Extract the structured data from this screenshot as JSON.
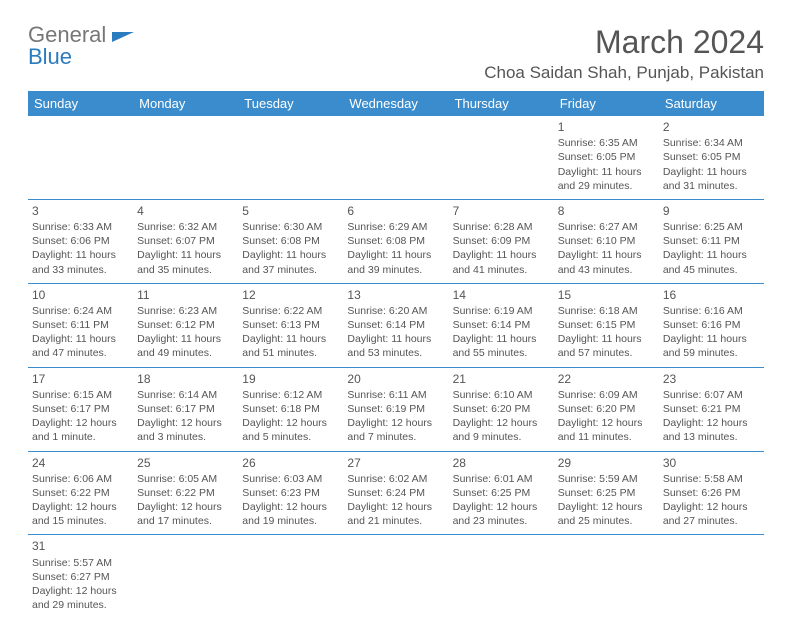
{
  "logo": {
    "part1": "General",
    "part2": "Blue"
  },
  "title": "March 2024",
  "location": "Choa Saidan Shah, Punjab, Pakistan",
  "colors": {
    "header_bg": "#3b8ccc",
    "border": "#3b8ccc",
    "text": "#555555",
    "logo_gray": "#777777",
    "logo_blue": "#2b7bbf"
  },
  "weekdays": [
    "Sunday",
    "Monday",
    "Tuesday",
    "Wednesday",
    "Thursday",
    "Friday",
    "Saturday"
  ],
  "weeks": [
    [
      null,
      null,
      null,
      null,
      null,
      {
        "n": "1",
        "sunrise": "Sunrise: 6:35 AM",
        "sunset": "Sunset: 6:05 PM",
        "daylight": "Daylight: 11 hours and 29 minutes."
      },
      {
        "n": "2",
        "sunrise": "Sunrise: 6:34 AM",
        "sunset": "Sunset: 6:05 PM",
        "daylight": "Daylight: 11 hours and 31 minutes."
      }
    ],
    [
      {
        "n": "3",
        "sunrise": "Sunrise: 6:33 AM",
        "sunset": "Sunset: 6:06 PM",
        "daylight": "Daylight: 11 hours and 33 minutes."
      },
      {
        "n": "4",
        "sunrise": "Sunrise: 6:32 AM",
        "sunset": "Sunset: 6:07 PM",
        "daylight": "Daylight: 11 hours and 35 minutes."
      },
      {
        "n": "5",
        "sunrise": "Sunrise: 6:30 AM",
        "sunset": "Sunset: 6:08 PM",
        "daylight": "Daylight: 11 hours and 37 minutes."
      },
      {
        "n": "6",
        "sunrise": "Sunrise: 6:29 AM",
        "sunset": "Sunset: 6:08 PM",
        "daylight": "Daylight: 11 hours and 39 minutes."
      },
      {
        "n": "7",
        "sunrise": "Sunrise: 6:28 AM",
        "sunset": "Sunset: 6:09 PM",
        "daylight": "Daylight: 11 hours and 41 minutes."
      },
      {
        "n": "8",
        "sunrise": "Sunrise: 6:27 AM",
        "sunset": "Sunset: 6:10 PM",
        "daylight": "Daylight: 11 hours and 43 minutes."
      },
      {
        "n": "9",
        "sunrise": "Sunrise: 6:25 AM",
        "sunset": "Sunset: 6:11 PM",
        "daylight": "Daylight: 11 hours and 45 minutes."
      }
    ],
    [
      {
        "n": "10",
        "sunrise": "Sunrise: 6:24 AM",
        "sunset": "Sunset: 6:11 PM",
        "daylight": "Daylight: 11 hours and 47 minutes."
      },
      {
        "n": "11",
        "sunrise": "Sunrise: 6:23 AM",
        "sunset": "Sunset: 6:12 PM",
        "daylight": "Daylight: 11 hours and 49 minutes."
      },
      {
        "n": "12",
        "sunrise": "Sunrise: 6:22 AM",
        "sunset": "Sunset: 6:13 PM",
        "daylight": "Daylight: 11 hours and 51 minutes."
      },
      {
        "n": "13",
        "sunrise": "Sunrise: 6:20 AM",
        "sunset": "Sunset: 6:14 PM",
        "daylight": "Daylight: 11 hours and 53 minutes."
      },
      {
        "n": "14",
        "sunrise": "Sunrise: 6:19 AM",
        "sunset": "Sunset: 6:14 PM",
        "daylight": "Daylight: 11 hours and 55 minutes."
      },
      {
        "n": "15",
        "sunrise": "Sunrise: 6:18 AM",
        "sunset": "Sunset: 6:15 PM",
        "daylight": "Daylight: 11 hours and 57 minutes."
      },
      {
        "n": "16",
        "sunrise": "Sunrise: 6:16 AM",
        "sunset": "Sunset: 6:16 PM",
        "daylight": "Daylight: 11 hours and 59 minutes."
      }
    ],
    [
      {
        "n": "17",
        "sunrise": "Sunrise: 6:15 AM",
        "sunset": "Sunset: 6:17 PM",
        "daylight": "Daylight: 12 hours and 1 minute."
      },
      {
        "n": "18",
        "sunrise": "Sunrise: 6:14 AM",
        "sunset": "Sunset: 6:17 PM",
        "daylight": "Daylight: 12 hours and 3 minutes."
      },
      {
        "n": "19",
        "sunrise": "Sunrise: 6:12 AM",
        "sunset": "Sunset: 6:18 PM",
        "daylight": "Daylight: 12 hours and 5 minutes."
      },
      {
        "n": "20",
        "sunrise": "Sunrise: 6:11 AM",
        "sunset": "Sunset: 6:19 PM",
        "daylight": "Daylight: 12 hours and 7 minutes."
      },
      {
        "n": "21",
        "sunrise": "Sunrise: 6:10 AM",
        "sunset": "Sunset: 6:20 PM",
        "daylight": "Daylight: 12 hours and 9 minutes."
      },
      {
        "n": "22",
        "sunrise": "Sunrise: 6:09 AM",
        "sunset": "Sunset: 6:20 PM",
        "daylight": "Daylight: 12 hours and 11 minutes."
      },
      {
        "n": "23",
        "sunrise": "Sunrise: 6:07 AM",
        "sunset": "Sunset: 6:21 PM",
        "daylight": "Daylight: 12 hours and 13 minutes."
      }
    ],
    [
      {
        "n": "24",
        "sunrise": "Sunrise: 6:06 AM",
        "sunset": "Sunset: 6:22 PM",
        "daylight": "Daylight: 12 hours and 15 minutes."
      },
      {
        "n": "25",
        "sunrise": "Sunrise: 6:05 AM",
        "sunset": "Sunset: 6:22 PM",
        "daylight": "Daylight: 12 hours and 17 minutes."
      },
      {
        "n": "26",
        "sunrise": "Sunrise: 6:03 AM",
        "sunset": "Sunset: 6:23 PM",
        "daylight": "Daylight: 12 hours and 19 minutes."
      },
      {
        "n": "27",
        "sunrise": "Sunrise: 6:02 AM",
        "sunset": "Sunset: 6:24 PM",
        "daylight": "Daylight: 12 hours and 21 minutes."
      },
      {
        "n": "28",
        "sunrise": "Sunrise: 6:01 AM",
        "sunset": "Sunset: 6:25 PM",
        "daylight": "Daylight: 12 hours and 23 minutes."
      },
      {
        "n": "29",
        "sunrise": "Sunrise: 5:59 AM",
        "sunset": "Sunset: 6:25 PM",
        "daylight": "Daylight: 12 hours and 25 minutes."
      },
      {
        "n": "30",
        "sunrise": "Sunrise: 5:58 AM",
        "sunset": "Sunset: 6:26 PM",
        "daylight": "Daylight: 12 hours and 27 minutes."
      }
    ],
    [
      {
        "n": "31",
        "sunrise": "Sunrise: 5:57 AM",
        "sunset": "Sunset: 6:27 PM",
        "daylight": "Daylight: 12 hours and 29 minutes."
      },
      null,
      null,
      null,
      null,
      null,
      null
    ]
  ]
}
